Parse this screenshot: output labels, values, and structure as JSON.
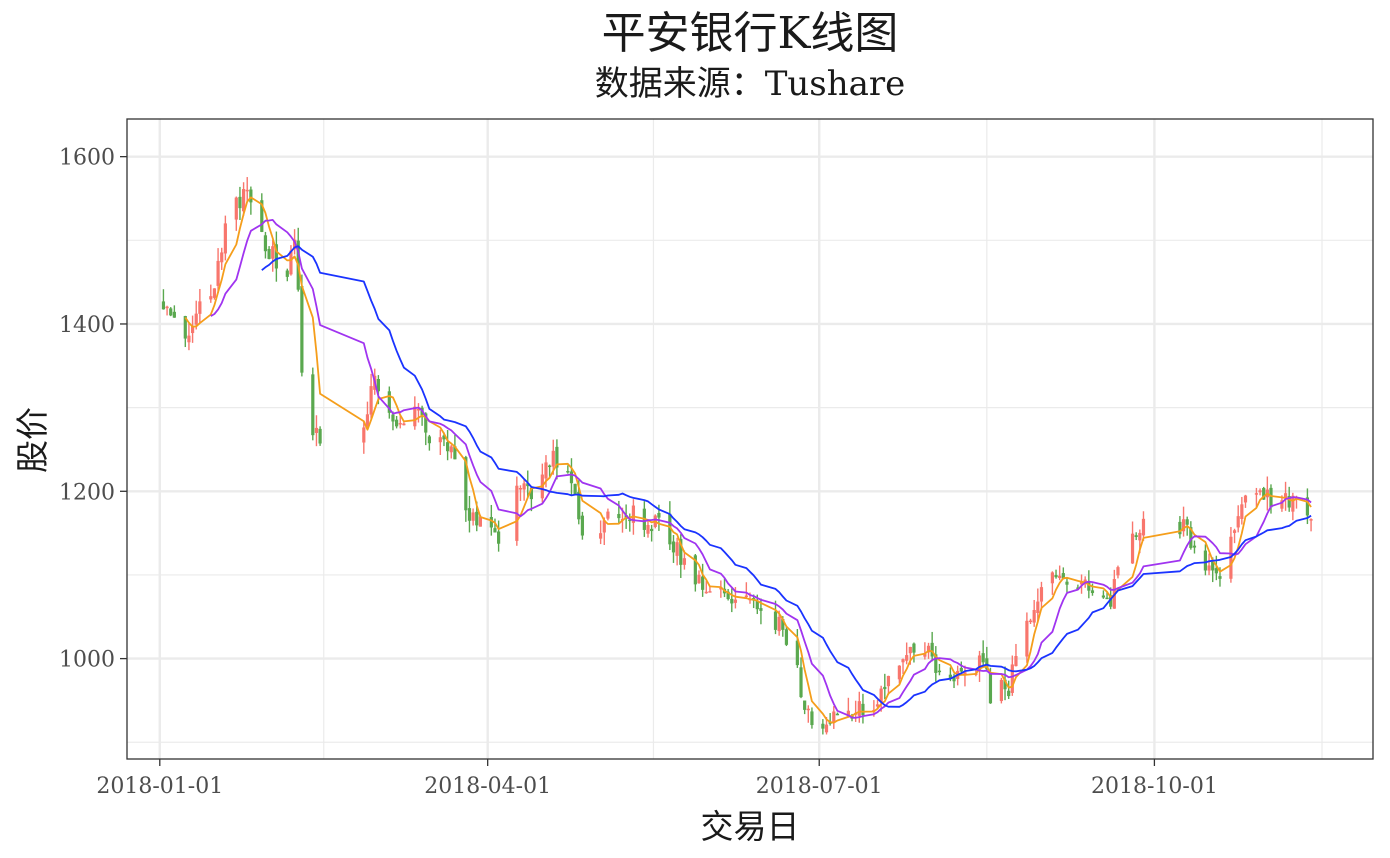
{
  "chart_data": {
    "type": "candlestick",
    "title": "平安银行K线图",
    "subtitle": "数据来源：Tushare",
    "xlabel": "交易日",
    "ylabel": "股价",
    "x_range": [
      "2017-12-23",
      "2018-11-30"
    ],
    "ylim": [
      880,
      1645
    ],
    "x_ticks": [
      "2018-01-01",
      "2018-04-01",
      "2018-07-01",
      "2018-10-01"
    ],
    "y_ticks": [
      1000,
      1200,
      1400,
      1600
    ],
    "grid": true,
    "colors": {
      "up": "#f8766d",
      "down": "#5aa84f",
      "ma_short": "#f59e1b",
      "ma_mid": "#a034f0",
      "ma_long": "#1a33ff",
      "grid": "#ebebeb",
      "panel_border": "#333333"
    },
    "trend_anchors": [
      [
        "2018-01-01",
        1440
      ],
      [
        "2018-01-05",
        1405
      ],
      [
        "2018-01-09",
        1390
      ],
      [
        "2018-01-12",
        1420
      ],
      [
        "2018-01-16",
        1450
      ],
      [
        "2018-01-19",
        1520
      ],
      [
        "2018-01-24",
        1555
      ],
      [
        "2018-01-26",
        1540
      ],
      [
        "2018-01-29",
        1505
      ],
      [
        "2018-02-01",
        1480
      ],
      [
        "2018-02-05",
        1465
      ],
      [
        "2018-02-07",
        1510
      ],
      [
        "2018-02-09",
        1350
      ],
      [
        "2018-02-12",
        1270
      ],
      [
        "2018-02-14",
        1260
      ],
      [
        "2018-02-26",
        1280
      ],
      [
        "2018-03-01",
        1330
      ],
      [
        "2018-03-05",
        1290
      ],
      [
        "2018-03-09",
        1280
      ],
      [
        "2018-03-13",
        1290
      ],
      [
        "2018-03-16",
        1270
      ],
      [
        "2018-03-20",
        1250
      ],
      [
        "2018-03-23",
        1240
      ],
      [
        "2018-03-26",
        1180
      ],
      [
        "2018-03-30",
        1160
      ],
      [
        "2018-04-04",
        1150
      ],
      [
        "2018-04-09",
        1220
      ],
      [
        "2018-04-13",
        1200
      ],
      [
        "2018-04-17",
        1225
      ],
      [
        "2018-04-20",
        1240
      ],
      [
        "2018-04-24",
        1200
      ],
      [
        "2018-04-27",
        1150
      ],
      [
        "2018-05-03",
        1160
      ],
      [
        "2018-05-08",
        1180
      ],
      [
        "2018-05-11",
        1175
      ],
      [
        "2018-05-16",
        1160
      ],
      [
        "2018-05-21",
        1150
      ],
      [
        "2018-05-24",
        1120
      ],
      [
        "2018-05-29",
        1090
      ],
      [
        "2018-06-01",
        1085
      ],
      [
        "2018-06-06",
        1080
      ],
      [
        "2018-06-11",
        1070
      ],
      [
        "2018-06-15",
        1060
      ],
      [
        "2018-06-20",
        1040
      ],
      [
        "2018-06-25",
        980
      ],
      [
        "2018-06-29",
        925
      ],
      [
        "2018-07-03",
        920
      ],
      [
        "2018-07-09",
        940
      ],
      [
        "2018-07-13",
        945
      ],
      [
        "2018-07-17",
        950
      ],
      [
        "2018-07-20",
        980
      ],
      [
        "2018-07-25",
        1010
      ],
      [
        "2018-07-30",
        1015
      ],
      [
        "2018-08-02",
        985
      ],
      [
        "2018-08-07",
        970
      ],
      [
        "2018-08-10",
        990
      ],
      [
        "2018-08-15",
        1000
      ],
      [
        "2018-08-17",
        960
      ],
      [
        "2018-08-22",
        965
      ],
      [
        "2018-08-27",
        1040
      ],
      [
        "2018-08-31",
        1090
      ],
      [
        "2018-09-05",
        1100
      ],
      [
        "2018-09-10",
        1090
      ],
      [
        "2018-09-14",
        1080
      ],
      [
        "2018-09-19",
        1070
      ],
      [
        "2018-09-21",
        1100
      ],
      [
        "2018-09-25",
        1150
      ],
      [
        "2018-09-28",
        1165
      ],
      [
        "2018-10-08",
        1160
      ],
      [
        "2018-10-11",
        1140
      ],
      [
        "2018-10-16",
        1110
      ],
      [
        "2018-10-19",
        1100
      ],
      [
        "2018-10-23",
        1150
      ],
      [
        "2018-10-26",
        1200
      ],
      [
        "2018-10-30",
        1195
      ],
      [
        "2018-11-05",
        1185
      ],
      [
        "2018-11-09",
        1180
      ],
      [
        "2018-11-13",
        1175
      ]
    ],
    "moving_averages": [
      {
        "window": 5,
        "color_key": "ma_short"
      },
      {
        "window": 10,
        "color_key": "ma_mid"
      },
      {
        "window": 20,
        "color_key": "ma_long"
      }
    ]
  }
}
